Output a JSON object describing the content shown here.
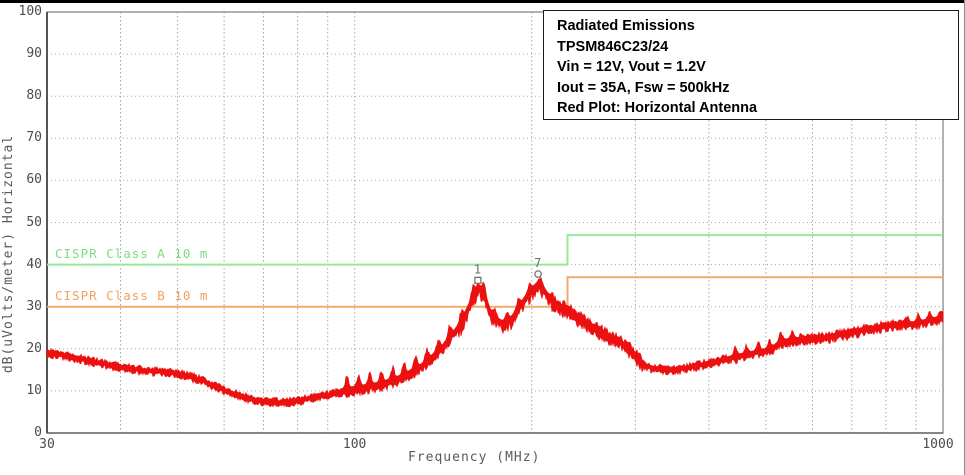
{
  "annotation_box": {
    "lines": [
      "Radiated Emissions",
      "TPSM846C23/24",
      "Vin = 12V,  Vout = 1.2V",
      "Iout = 35A, Fsw = 500kHz",
      "Red Plot: Horizontal Antenna"
    ]
  },
  "chart_data": {
    "type": "line",
    "title": "Radiated Emissions",
    "xlabel": "Frequency (MHz)",
    "ylabel": "dB(uVolts/meter) Horizontal",
    "x_scale": "log",
    "xlim": [
      30,
      1000
    ],
    "ylim": [
      0,
      100
    ],
    "x_tick_labels": [
      30,
      100,
      1000
    ],
    "x_gridlines": [
      40,
      50,
      60,
      70,
      80,
      90,
      100,
      200,
      300,
      400,
      500,
      600,
      700,
      800,
      900
    ],
    "y_ticks": [
      0,
      10,
      20,
      30,
      40,
      50,
      60,
      70,
      80,
      90,
      100
    ],
    "grid": "dotted",
    "legend_position": "none",
    "limits": [
      {
        "name": "CISPR Class A 10 m",
        "color": "#97e897",
        "points": [
          [
            30,
            40
          ],
          [
            230,
            40
          ],
          [
            230,
            47
          ],
          [
            1000,
            47
          ]
        ]
      },
      {
        "name": "CISPR Class B 10 m",
        "color": "#f3aa6e",
        "points": [
          [
            30,
            30
          ],
          [
            230,
            30
          ],
          [
            230,
            37
          ],
          [
            1000,
            37
          ]
        ]
      }
    ],
    "markers": [
      {
        "label": "1",
        "shape": "square",
        "f": 162,
        "db": 36.5
      },
      {
        "label": "7",
        "shape": "circle",
        "f": 205,
        "db": 38.0
      }
    ],
    "series": [
      {
        "name": "Horizontal Antenna",
        "color": "#ec1111",
        "points": [
          [
            30,
            18.5
          ],
          [
            35,
            17.2
          ],
          [
            40,
            16.2
          ],
          [
            45,
            14.8
          ],
          [
            50,
            13.8
          ],
          [
            55,
            12.0
          ],
          [
            60,
            10.0
          ],
          [
            65,
            8.8
          ],
          [
            70,
            8.0
          ],
          [
            75,
            7.6
          ],
          [
            80,
            7.6
          ],
          [
            85,
            8.0
          ],
          [
            90,
            8.5
          ],
          [
            95,
            9.2
          ],
          [
            100,
            10.0
          ],
          [
            110,
            11.5
          ],
          [
            120,
            13.5
          ],
          [
            130,
            16.0
          ],
          [
            140,
            19.5
          ],
          [
            150,
            24.5
          ],
          [
            157,
            30.0
          ],
          [
            162,
            34.5
          ],
          [
            166,
            32.5
          ],
          [
            170,
            28.5
          ],
          [
            175,
            26.5
          ],
          [
            180,
            26.0
          ],
          [
            185,
            27.5
          ],
          [
            190,
            30.0
          ],
          [
            195,
            32.5
          ],
          [
            200,
            34.5
          ],
          [
            205,
            36.0
          ],
          [
            210,
            34.5
          ],
          [
            215,
            32.5
          ],
          [
            220,
            30.8
          ],
          [
            230,
            29.3
          ],
          [
            240,
            27.3
          ],
          [
            250,
            25.3
          ],
          [
            260,
            23.8
          ],
          [
            270,
            22.3
          ],
          [
            280,
            21.3
          ],
          [
            290,
            20.0
          ],
          [
            300,
            18.0
          ],
          [
            310,
            16.2
          ],
          [
            320,
            15.5
          ],
          [
            340,
            15.4
          ],
          [
            360,
            15.7
          ],
          [
            380,
            16.2
          ],
          [
            400,
            16.8
          ],
          [
            430,
            17.3
          ],
          [
            460,
            18.0
          ],
          [
            490,
            18.8
          ],
          [
            510,
            19.5
          ],
          [
            530,
            21.5
          ],
          [
            560,
            22.3
          ],
          [
            600,
            22.8
          ],
          [
            650,
            23.3
          ],
          [
            700,
            23.8
          ],
          [
            750,
            24.3
          ],
          [
            800,
            24.8
          ],
          [
            850,
            25.3
          ],
          [
            900,
            25.8
          ],
          [
            950,
            26.8
          ],
          [
            1000,
            27.8
          ]
        ]
      }
    ],
    "noise_band": {
      "seed": 12345,
      "regions": [
        {
          "from": 30,
          "to": 95,
          "up": 1.3,
          "dn": 1.2,
          "comb": false
        },
        {
          "from": 95,
          "to": 150,
          "up": 3.8,
          "dn": 1.6,
          "comb": true
        },
        {
          "from": 150,
          "to": 172,
          "up": 3.0,
          "dn": 3.2,
          "comb": true
        },
        {
          "from": 172,
          "to": 218,
          "up": 2.4,
          "dn": 2.8,
          "comb": true
        },
        {
          "from": 218,
          "to": 310,
          "up": 2.2,
          "dn": 2.2,
          "comb": false
        },
        {
          "from": 310,
          "to": 430,
          "up": 1.4,
          "dn": 1.3,
          "comb": false
        },
        {
          "from": 430,
          "to": 570,
          "up": 2.6,
          "dn": 1.6,
          "comb": true
        },
        {
          "from": 570,
          "to": 860,
          "up": 1.7,
          "dn": 1.5,
          "comb": false
        },
        {
          "from": 860,
          "to": 1001,
          "up": 2.3,
          "dn": 1.6,
          "comb": true
        }
      ]
    },
    "colors": {
      "trace": "#ec1111",
      "grid": "#a8a8a8",
      "plot_border": "#7d7d7d",
      "tick_text": "#4c4c4c",
      "marker": "#6a6a6a"
    }
  }
}
